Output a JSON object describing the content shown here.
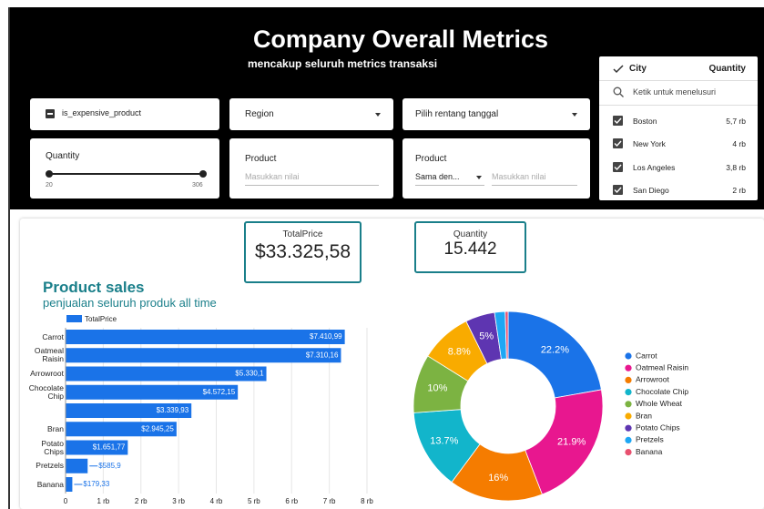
{
  "header": {
    "title": "Company Overall Metrics",
    "subtitle": "mencakup seluruh metrics transaksi"
  },
  "filters": {
    "expensive": "is_expensive_product",
    "region": "Region",
    "date": "Pilih rentang tanggal",
    "quantity": {
      "label": "Quantity",
      "min": 20,
      "max": 306
    },
    "product1": {
      "label": "Product",
      "placeholder": "Masukkan nilai"
    },
    "product2": {
      "label": "Product",
      "operator": "Sama den...",
      "placeholder": "Masukkan nilai"
    }
  },
  "city_dropdown": {
    "header": [
      "City",
      "Quantity"
    ],
    "search": "Ketik untuk menelusuri",
    "rows": [
      [
        "Boston",
        "5,7 rb"
      ],
      [
        "New York",
        "4 rb"
      ],
      [
        "Los Angeles",
        "3,8 rb"
      ],
      [
        "San Diego",
        "2 rb"
      ]
    ]
  },
  "kpis": [
    {
      "label": "TotalPrice",
      "value": "$33.325,58"
    },
    {
      "label": "Quantity",
      "value": "15.442"
    }
  ],
  "chart_data": [
    {
      "type": "bar",
      "orientation": "horizontal",
      "title": "Product sales",
      "subtitle": "penjualan seluruh produk all time",
      "categories": [
        "Carrot",
        "Oatmeal Raisin",
        "Arrowroot",
        "Chocolate Chip",
        null,
        "Bran",
        "Potato Chips",
        "Pretzels",
        "Banana"
      ],
      "series": [
        {
          "name": "TotalPrice",
          "color": "#1a73e8",
          "values": [
            7410.99,
            7310.16,
            5330.1,
            4572.15,
            3339.93,
            2945.25,
            1651.77,
            585.9,
            179.33
          ]
        }
      ],
      "value_labels": [
        "$7.410,99",
        "$7.310,16",
        "$5.330,1",
        "$4.572,15",
        "$3.339,93",
        "$2.945,25",
        "$1.651,77",
        "$585,9",
        "$179,33"
      ],
      "xlim": [
        0,
        8000
      ],
      "xticks": [
        0,
        {
          "value": 1000,
          "label": "1 rb"
        },
        {
          "value": 2000,
          "label": "2 rb"
        },
        {
          "value": 3000,
          "label": "3 rb"
        },
        {
          "value": 4000,
          "label": "4 rb"
        },
        {
          "value": 5000,
          "label": "5 rb"
        },
        {
          "value": 6000,
          "label": "6 rb"
        },
        {
          "value": 7000,
          "label": "7 rb"
        },
        {
          "value": 8000,
          "label": "8 rb"
        }
      ],
      "grid": true,
      "legend": "top"
    },
    {
      "type": "pie",
      "donut": true,
      "legend": "right",
      "categories": [
        "Carrot",
        "Oatmeal Raisin",
        "Arrowroot",
        "Chocolate Chip",
        "Whole Wheat",
        "Bran",
        "Potato Chips",
        "Pretzels",
        "Banana"
      ],
      "values": [
        22.2,
        21.9,
        16,
        13.7,
        10,
        8.8,
        5,
        1.8,
        0.5
      ],
      "value_labels": [
        "22.2%",
        "21.9%",
        "16%",
        "13.7%",
        "10%",
        "8.8%",
        "5%",
        null,
        null
      ],
      "colors": [
        "#1a73e8",
        "#e8178f",
        "#f57c00",
        "#12b5cb",
        "#7cb342",
        "#f9ab00",
        "#5e35b1",
        "#1ea7f4",
        "#e8506f"
      ]
    }
  ]
}
